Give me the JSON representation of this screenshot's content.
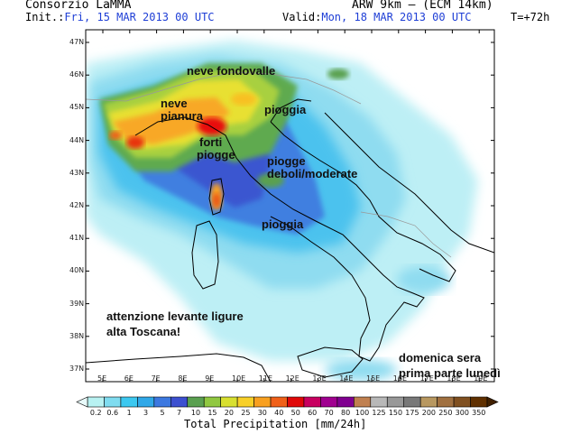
{
  "header": {
    "left_title": "Consorzio LaMMA",
    "right_title": "ARW 9km — (ECM 14km)",
    "init_label": "Init.:",
    "init_value": "Fri, 15 MAR 2013   00 UTC",
    "valid_label": "Valid:",
    "valid_value": "Mon, 18 MAR 2013   00 UTC",
    "forecast_step": "T=+72h"
  },
  "map": {
    "lat_labels": [
      "47N",
      "46N",
      "45N",
      "44N",
      "43N",
      "42N",
      "41N",
      "40N",
      "39N",
      "38N",
      "37N"
    ],
    "lon_labels": [
      "5E",
      "6E",
      "7E",
      "8E",
      "9E",
      "10E",
      "11E",
      "12E",
      "13E",
      "14E",
      "15E",
      "16E",
      "17E",
      "18E",
      "19E"
    ],
    "annotations": {
      "neve_fondovalle": "neve fondovalle",
      "neve_pianura_1": "neve",
      "neve_pianura_2": "pianura",
      "pioggia_north": "pioggia",
      "forti_piogge_1": "forti",
      "forti_piogge_2": "piogge",
      "piogge_deboli_1": "piogge",
      "piogge_deboli_2": "deboli/moderate",
      "pioggia_center": "pioggia",
      "warning_1": "attenzione levante ligure",
      "warning_2": "alta Toscana!",
      "timing_1": "domenica sera",
      "timing_2": "prima parte lunedì"
    }
  },
  "colorbar": {
    "title": "Total Precipitation [mm/24h]",
    "labels": [
      "0.2",
      "0.6",
      "1",
      "3",
      "5",
      "7",
      "10",
      "15",
      "20",
      "25",
      "30",
      "40",
      "50",
      "60",
      "70",
      "80",
      "100",
      "125",
      "150",
      "175",
      "200",
      "250",
      "300",
      "350"
    ],
    "colors": [
      "#b8f2f2",
      "#7fdcf0",
      "#3cc8f0",
      "#30a8e8",
      "#3c78e0",
      "#3c50d0",
      "#5aa050",
      "#90c840",
      "#d8e030",
      "#f8d028",
      "#f8a020",
      "#f06018",
      "#e00808",
      "#c80060",
      "#a00090",
      "#800090",
      "#c08050",
      "#b8b8b8",
      "#989898",
      "#787878",
      "#b89860",
      "#a07040",
      "#805020",
      "#603000"
    ]
  }
}
